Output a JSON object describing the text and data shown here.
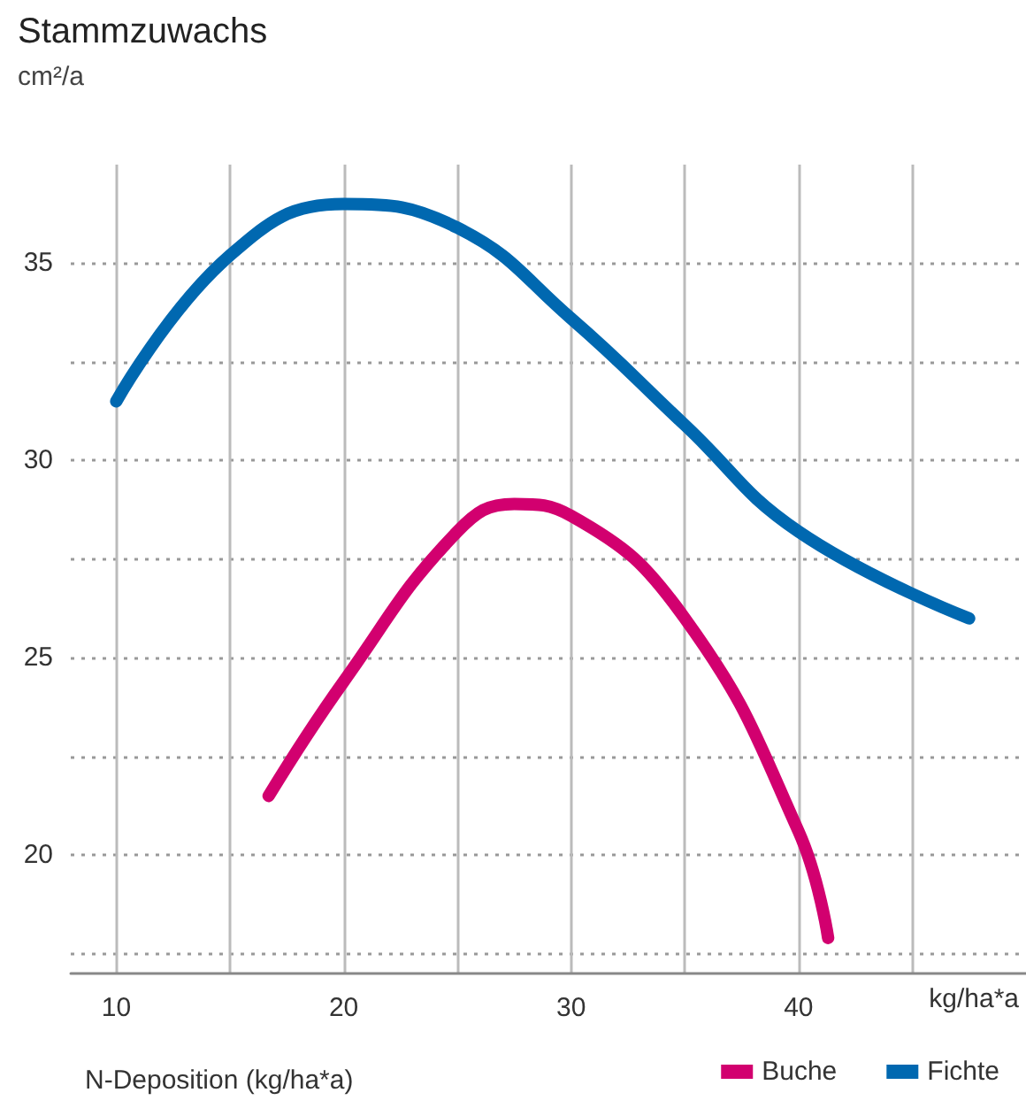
{
  "chart_data": {
    "type": "line",
    "title": "Stammzuwachs",
    "ylabel": "cm²/a",
    "xlabel": "N-Deposition (kg/ha*a)",
    "annotations": [
      "kg/ha*a"
    ],
    "series": [
      {
        "name": "Buche",
        "color": "#d2006f",
        "x": [
          16.7,
          20,
          25,
          27.5,
          30,
          35,
          40,
          41.3
        ],
        "values": [
          21.5,
          24.4,
          28.2,
          28.9,
          28.6,
          26.0,
          20.6,
          17.9
        ]
      },
      {
        "name": "Fichte",
        "color": "#0068b0",
        "x": [
          10,
          15,
          20,
          25,
          30,
          35,
          40,
          47.5
        ],
        "values": [
          31.5,
          35.2,
          36.5,
          35.9,
          33.6,
          30.9,
          28.2,
          26.0
        ]
      }
    ],
    "xlim": [
      8,
      50
    ],
    "xticks": [
      10,
      {
        "value": 15,
        "label": null
      },
      20,
      {
        "value": 25,
        "label": null
      },
      30,
      {
        "value": 35,
        "label": null
      },
      40,
      {
        "value": 45,
        "label": null
      }
    ],
    "ylim": [
      17,
      37.5
    ],
    "yticks": [
      {
        "value": 17.5,
        "label": null
      },
      20,
      {
        "value": 22.5,
        "label": null
      },
      25,
      {
        "value": 27.5,
        "label": null
      },
      30,
      {
        "value": 32.5,
        "label": null
      },
      35
    ],
    "grid": true,
    "legend": "bottom right",
    "marker": "none",
    "line_style": "solid"
  }
}
